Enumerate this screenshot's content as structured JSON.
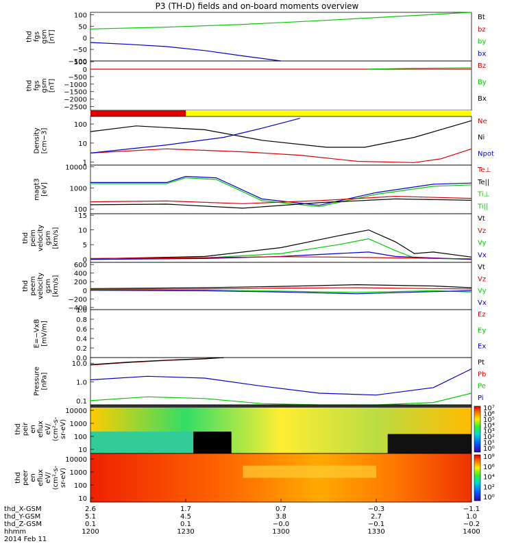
{
  "title": "P3 (TH-D) fields and on-board moments overview",
  "colors": {
    "black": "#000000",
    "red": "#dd0000",
    "green": "#00cc00",
    "blue": "#0000cc",
    "yellow": "#ffff00"
  },
  "chart_data": [
    {
      "type": "line",
      "panel": "fgs_gsm",
      "ylabel": [
        "thd",
        "fgs",
        "gsm",
        "[nT]"
      ],
      "yticks": [
        "100",
        "50",
        "0",
        "−50",
        "−100"
      ],
      "ylim": [
        -100,
        110
      ],
      "legend": [
        {
          "label": "Bt",
          "color": "black"
        },
        {
          "label": "bz",
          "color": "red"
        },
        {
          "label": "by",
          "color": "green"
        },
        {
          "label": "bx",
          "color": "blue"
        }
      ],
      "series": [
        {
          "name": "by",
          "color": "green",
          "x": [
            0,
            0.2,
            0.4,
            0.6,
            0.8,
            1.0
          ],
          "y": [
            38,
            46,
            58,
            74,
            92,
            112
          ]
        },
        {
          "name": "bx",
          "color": "blue",
          "x": [
            0,
            0.1,
            0.2,
            0.3,
            0.4,
            0.5
          ],
          "y": [
            -20,
            -28,
            -38,
            -55,
            -78,
            -102
          ]
        }
      ]
    },
    {
      "type": "line",
      "panel": "fgs_gsm_large",
      "ylabel": [
        "thd",
        "fgs",
        "gsm",
        "[nT]"
      ],
      "yticks": [
        "500",
        "0",
        "−500",
        "−1000",
        "−1500",
        "−2000",
        "−2500"
      ],
      "ylim": [
        -2750,
        550
      ],
      "legend": [
        {
          "label": "Bz",
          "color": "red"
        },
        {
          "label": "By",
          "color": "green"
        },
        {
          "label": "Bx",
          "color": "black"
        }
      ],
      "series": [
        {
          "name": "Bz",
          "color": "red",
          "x": [
            0,
            1
          ],
          "y": [
            0,
            0
          ]
        },
        {
          "name": "By",
          "color": "green",
          "x": [
            0.73,
            0.85,
            1.0
          ],
          "y": [
            10,
            60,
            90
          ]
        }
      ]
    },
    {
      "type": "bar",
      "panel": "mode_bar",
      "segments": [
        {
          "from": 0,
          "to": 0.25,
          "color": "red"
        },
        {
          "from": 0.25,
          "to": 1,
          "color": "yellow"
        }
      ]
    },
    {
      "type": "line",
      "panel": "density",
      "yscale": "log",
      "ylabel": [
        "Density",
        "[cm−3]"
      ],
      "yticks": [
        "100",
        "10",
        "1"
      ],
      "ylim": [
        0.7,
        250
      ],
      "legend": [
        {
          "label": "Ne",
          "color": "red"
        },
        {
          "label": "Ni",
          "color": "black"
        },
        {
          "label": "Npot",
          "color": "blue"
        }
      ],
      "series": [
        {
          "name": "Ni",
          "color": "black",
          "x": [
            0,
            0.12,
            0.3,
            0.45,
            0.62,
            0.72,
            0.85,
            1.0
          ],
          "y": [
            40,
            80,
            50,
            14,
            6,
            6,
            20,
            150
          ]
        },
        {
          "name": "Ne",
          "color": "red",
          "x": [
            0,
            0.2,
            0.4,
            0.55,
            0.7,
            0.85,
            0.92,
            1.0
          ],
          "y": [
            3,
            5,
            3.5,
            2.3,
            1.1,
            0.95,
            1.5,
            5
          ]
        },
        {
          "name": "Npot",
          "color": "blue",
          "x": [
            0,
            0.2,
            0.35,
            0.45,
            0.55
          ],
          "y": [
            3,
            8,
            20,
            60,
            200
          ]
        }
      ]
    },
    {
      "type": "line",
      "panel": "temperature",
      "yscale": "log",
      "ylabel": [
        "magt3",
        "[eV]"
      ],
      "yticks": [
        "10000",
        "1000",
        "100"
      ],
      "ylim": [
        60,
        12000
      ],
      "legend": [
        {
          "label": "Te⊥",
          "color": "red"
        },
        {
          "label": "Te||",
          "color": "black"
        },
        {
          "label": "Ti⊥",
          "color": "green"
        },
        {
          "label": "Ti||",
          "color": "green"
        }
      ],
      "series": [
        {
          "name": "Ti⊥",
          "color": "blue",
          "x": [
            0,
            0.2,
            0.25,
            0.33,
            0.45,
            0.6,
            0.75,
            0.9,
            1.0
          ],
          "y": [
            1800,
            1800,
            3500,
            3000,
            300,
            150,
            600,
            1500,
            1700
          ]
        },
        {
          "name": "Ti||",
          "color": "green",
          "x": [
            0,
            0.2,
            0.25,
            0.33,
            0.45,
            0.6,
            0.75,
            0.9,
            1.0
          ],
          "y": [
            1600,
            1600,
            3000,
            2500,
            250,
            130,
            500,
            1200,
            1400
          ]
        },
        {
          "name": "Te⊥",
          "color": "red",
          "x": [
            0,
            0.2,
            0.4,
            0.6,
            0.8,
            1.0
          ],
          "y": [
            220,
            240,
            180,
            250,
            400,
            320
          ]
        },
        {
          "name": "Te||",
          "color": "black",
          "x": [
            0,
            0.2,
            0.4,
            0.6,
            0.8,
            1.0
          ],
          "y": [
            160,
            170,
            110,
            200,
            300,
            260
          ]
        }
      ]
    },
    {
      "type": "line",
      "panel": "peim_velocity",
      "ylabel": [
        "thd",
        "peim",
        "velocity",
        "gsm",
        "[km/s]"
      ],
      "yticks": [
        "15",
        "10",
        "5",
        "0"
      ],
      "ylim": [
        -1,
        15.5
      ],
      "legend": [
        {
          "label": "Vt",
          "color": "black"
        },
        {
          "label": "Vz",
          "color": "red"
        },
        {
          "label": "Vy",
          "color": "green"
        },
        {
          "label": "Vx",
          "color": "blue"
        }
      ],
      "series": [
        {
          "name": "Vt",
          "color": "black",
          "x": [
            0,
            0.3,
            0.5,
            0.65,
            0.73,
            0.8,
            0.85,
            0.9,
            1.0
          ],
          "y": [
            0.2,
            1,
            4,
            8,
            10,
            6,
            2,
            2.5,
            0.8
          ]
        },
        {
          "name": "Vy",
          "color": "green",
          "x": [
            0,
            0.3,
            0.5,
            0.65,
            0.73,
            0.8,
            0.85,
            1.0
          ],
          "y": [
            0,
            0.5,
            2,
            5,
            7,
            3,
            0.5,
            0
          ]
        },
        {
          "name": "Vx",
          "color": "blue",
          "x": [
            0,
            0.3,
            0.5,
            0.65,
            0.73,
            0.8,
            1.0
          ],
          "y": [
            0,
            0.3,
            1,
            2,
            2.5,
            1,
            0
          ]
        },
        {
          "name": "Vz",
          "color": "red",
          "x": [
            0,
            0.3,
            0.5,
            0.65,
            0.8,
            1.0
          ],
          "y": [
            0.3,
            0.6,
            0.9,
            0.8,
            0.5,
            0.2
          ]
        }
      ]
    },
    {
      "type": "line",
      "panel": "peem_velocity",
      "ylabel": [
        "thd",
        "peem",
        "velocity",
        "gsm",
        "[km/s]"
      ],
      "yticks": [
        "600",
        "400",
        "200",
        "0",
        "−200",
        "−400"
      ],
      "ylim": [
        -450,
        650
      ],
      "legend": [
        {
          "label": "Vt",
          "color": "black"
        },
        {
          "label": "Vz",
          "color": "red"
        },
        {
          "label": "Vy",
          "color": "green"
        },
        {
          "label": "Vx",
          "color": "blue"
        }
      ],
      "series": [
        {
          "name": "Vt",
          "color": "black",
          "x": [
            0,
            0.3,
            0.5,
            0.7,
            0.9,
            1.0
          ],
          "y": [
            40,
            60,
            90,
            130,
            100,
            60
          ]
        },
        {
          "name": "Vz",
          "color": "red",
          "x": [
            0,
            0.3,
            0.5,
            0.7,
            0.9,
            1.0
          ],
          "y": [
            20,
            30,
            50,
            60,
            40,
            30
          ]
        },
        {
          "name": "Vy",
          "color": "green",
          "x": [
            0,
            0.3,
            0.5,
            0.7,
            0.9,
            1.0
          ],
          "y": [
            10,
            0,
            -20,
            -50,
            -10,
            -40
          ]
        },
        {
          "name": "Vx",
          "color": "blue",
          "x": [
            0,
            0.3,
            0.5,
            0.7,
            0.9,
            1.0
          ],
          "y": [
            0,
            -10,
            -40,
            -80,
            -30,
            -10
          ]
        }
      ]
    },
    {
      "type": "line",
      "panel": "efield",
      "ylabel": [
        "E=−VxB",
        "[mV/m]"
      ],
      "yticks": [
        "1.0",
        "0.8",
        "0.6",
        "0.4",
        "0.2",
        "0.0"
      ],
      "ylim": [
        0,
        1
      ],
      "legend": [
        {
          "label": "Ez",
          "color": "red"
        },
        {
          "label": "Ey",
          "color": "green"
        },
        {
          "label": "Ex",
          "color": "blue"
        }
      ],
      "series": []
    },
    {
      "type": "line",
      "panel": "pressure",
      "yscale": "log",
      "ylabel": [
        "Pressure",
        "[nPa]"
      ],
      "yticks": [
        "10.0",
        "1.0",
        "0.1"
      ],
      "ylim": [
        0.06,
        20
      ],
      "legend": [
        {
          "label": "Pt",
          "color": "black"
        },
        {
          "label": "Pb",
          "color": "red"
        },
        {
          "label": "Pe",
          "color": "green"
        },
        {
          "label": "Pi",
          "color": "blue"
        }
      ],
      "series": [
        {
          "name": "Pb",
          "color": "red",
          "x": [
            0,
            0.1,
            0.2,
            0.3,
            0.35
          ],
          "y": [
            8,
            11,
            14,
            17,
            20
          ]
        },
        {
          "name": "Pt",
          "color": "black",
          "x": [
            0,
            0.1,
            0.2,
            0.3,
            0.35
          ],
          "y": [
            8.3,
            11.5,
            14.5,
            17.5,
            20
          ]
        },
        {
          "name": "Pi",
          "color": "blue",
          "x": [
            0,
            0.15,
            0.3,
            0.45,
            0.6,
            0.75,
            0.9,
            1.0
          ],
          "y": [
            1.3,
            2,
            1.6,
            0.6,
            0.25,
            0.2,
            0.5,
            5
          ]
        },
        {
          "name": "Pe",
          "color": "green",
          "x": [
            0,
            0.15,
            0.3,
            0.45,
            0.6,
            0.75,
            0.9,
            1.0
          ],
          "y": [
            0.1,
            0.16,
            0.13,
            0.07,
            0.045,
            0.05,
            0.08,
            0.25
          ]
        }
      ]
    },
    {
      "type": "heatmap",
      "panel": "peir_spectrogram",
      "ylabel": [
        "thd",
        "peir",
        "en",
        "eflux",
        "eV/",
        "(cm²-s-",
        "sr-eV)"
      ],
      "yticks": [
        "10000",
        "1000",
        "100",
        "10"
      ],
      "colorbar": [
        "10⁷",
        "10⁶",
        "10⁵",
        "10⁴",
        "10³",
        "10²",
        "10¹",
        "10⁰"
      ]
    },
    {
      "type": "heatmap",
      "panel": "peer_spectrogram",
      "ylabel": [
        "thd",
        "peer",
        "en",
        "eflux",
        "eV/",
        "(cm²-s-",
        "sr-eV)"
      ],
      "yticks": [
        "10000",
        "1000",
        "100",
        "10"
      ],
      "colorbar": [
        "10⁸",
        "10⁶",
        "10⁴",
        "10²",
        "10⁰"
      ]
    }
  ],
  "xaxis": {
    "rows": [
      {
        "label": "thd_X-GSM",
        "values": [
          "2.6",
          "1.7",
          "0.7",
          "−0.3",
          "−1.1"
        ]
      },
      {
        "label": "thd_Y-GSM",
        "values": [
          "5.1",
          "4.5",
          "3.8",
          "2.7",
          "1.0"
        ]
      },
      {
        "label": "thd_Z-GSM",
        "values": [
          "0.1",
          "0.1",
          "−0.0",
          "−0.1",
          "−0.2"
        ]
      },
      {
        "label": "hhmm",
        "values": [
          "1200",
          "1230",
          "1300",
          "1330",
          "1400"
        ]
      }
    ],
    "date": "2014 Feb 11"
  }
}
